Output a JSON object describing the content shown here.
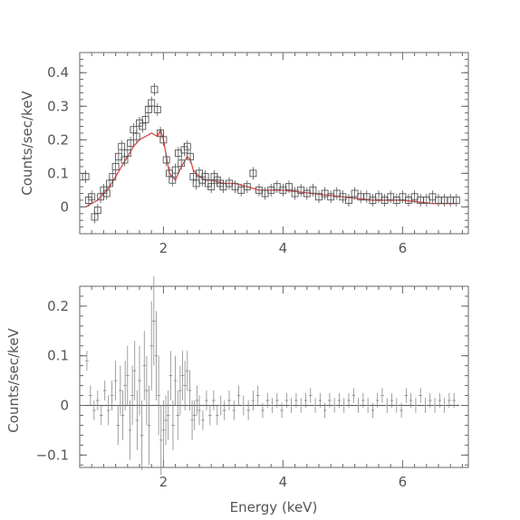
{
  "chart_data": [
    {
      "type": "scatter",
      "panel": "spectrum",
      "xlabel": "",
      "ylabel": "Counts/sec/keV",
      "xlim": [
        0.6,
        7.1
      ],
      "ylim": [
        -0.08,
        0.46
      ],
      "xticks": [
        2,
        4,
        6
      ],
      "xtick_labels": [
        "2",
        "4",
        "6"
      ],
      "yticks": [
        0,
        0.1,
        0.2,
        0.3,
        0.4
      ],
      "ytick_labels": [
        "0",
        "0.1",
        "0.2",
        "0.3",
        "0.4"
      ],
      "marker": "open-square",
      "colors": {
        "data": "#555555",
        "model": "#e05050"
      },
      "series": [
        {
          "kind": "data",
          "x": [
            0.7,
            0.75,
            0.8,
            0.85,
            0.9,
            0.95,
            1.0,
            1.05,
            1.1,
            1.15,
            1.2,
            1.25,
            1.3,
            1.35,
            1.4,
            1.45,
            1.5,
            1.55,
            1.6,
            1.65,
            1.7,
            1.75,
            1.8,
            1.85,
            1.9,
            1.95,
            2.0,
            2.05,
            2.1,
            2.15,
            2.2,
            2.25,
            2.3,
            2.35,
            2.4,
            2.45,
            2.5,
            2.55,
            2.6,
            2.65,
            2.7,
            2.75,
            2.8,
            2.85,
            2.9,
            2.95,
            3.0,
            3.1,
            3.2,
            3.3,
            3.4,
            3.5,
            3.6,
            3.7,
            3.8,
            3.9,
            4.0,
            4.1,
            4.2,
            4.3,
            4.4,
            4.5,
            4.6,
            4.7,
            4.8,
            4.9,
            5.0,
            5.1,
            5.2,
            5.3,
            5.4,
            5.5,
            5.6,
            5.7,
            5.8,
            5.9,
            6.0,
            6.1,
            6.2,
            6.3,
            6.4,
            6.5,
            6.6,
            6.7,
            6.8,
            6.9
          ],
          "y": [
            0.09,
            0.02,
            0.03,
            -0.03,
            -0.01,
            0.03,
            0.05,
            0.04,
            0.07,
            0.09,
            0.12,
            0.15,
            0.18,
            0.14,
            0.16,
            0.19,
            0.23,
            0.21,
            0.25,
            0.24,
            0.26,
            0.29,
            0.31,
            0.35,
            0.29,
            0.22,
            0.2,
            0.14,
            0.1,
            0.08,
            0.11,
            0.16,
            0.13,
            0.17,
            0.18,
            0.15,
            0.09,
            0.07,
            0.1,
            0.08,
            0.09,
            0.07,
            0.06,
            0.09,
            0.08,
            0.07,
            0.06,
            0.07,
            0.06,
            0.05,
            0.06,
            0.1,
            0.05,
            0.04,
            0.05,
            0.06,
            0.05,
            0.06,
            0.04,
            0.05,
            0.04,
            0.05,
            0.03,
            0.04,
            0.03,
            0.04,
            0.03,
            0.02,
            0.04,
            0.03,
            0.03,
            0.02,
            0.03,
            0.02,
            0.03,
            0.02,
            0.03,
            0.02,
            0.03,
            0.02,
            0.02,
            0.03,
            0.02,
            0.02,
            0.02,
            0.02
          ]
        },
        {
          "kind": "model",
          "x": [
            0.7,
            0.8,
            0.9,
            1.0,
            1.1,
            1.2,
            1.3,
            1.4,
            1.5,
            1.6,
            1.7,
            1.8,
            1.9,
            1.95,
            2.0,
            2.1,
            2.2,
            2.3,
            2.4,
            2.45,
            2.5,
            2.6,
            2.7,
            2.8,
            3.0,
            3.2,
            3.4,
            3.6,
            3.8,
            4.0,
            4.5,
            5.0,
            5.5,
            6.0,
            6.5,
            6.9
          ],
          "y": [
            0.0,
            0.01,
            0.02,
            0.04,
            0.06,
            0.09,
            0.12,
            0.15,
            0.18,
            0.2,
            0.21,
            0.22,
            0.21,
            0.23,
            0.2,
            0.1,
            0.08,
            0.12,
            0.15,
            0.14,
            0.11,
            0.09,
            0.08,
            0.08,
            0.07,
            0.07,
            0.06,
            0.05,
            0.05,
            0.05,
            0.04,
            0.03,
            0.02,
            0.02,
            0.01,
            0.01
          ]
        }
      ]
    },
    {
      "type": "scatter",
      "panel": "residuals",
      "xlabel": "Energy (keV)",
      "ylabel": "Counts/sec/keV",
      "xlim": [
        0.6,
        7.1
      ],
      "ylim": [
        -0.125,
        0.24
      ],
      "xticks": [
        2,
        4,
        6
      ],
      "xtick_labels": [
        "2",
        "4",
        "6"
      ],
      "yticks": [
        -0.1,
        0,
        0.1,
        0.2
      ],
      "ytick_labels": [
        "−0.1",
        "0",
        "0.1",
        "0.2"
      ],
      "marker": "cross-error-bar",
      "colors": {
        "data": "#888888",
        "zero_line": "#555555"
      },
      "series": [
        {
          "kind": "residuals",
          "x": [
            0.72,
            0.78,
            0.84,
            0.9,
            0.96,
            1.02,
            1.08,
            1.14,
            1.2,
            1.24,
            1.28,
            1.32,
            1.36,
            1.4,
            1.44,
            1.48,
            1.52,
            1.56,
            1.6,
            1.64,
            1.68,
            1.72,
            1.76,
            1.8,
            1.84,
            1.88,
            1.92,
            1.96,
            2.0,
            2.04,
            2.08,
            2.12,
            2.16,
            2.2,
            2.24,
            2.28,
            2.32,
            2.36,
            2.4,
            2.44,
            2.48,
            2.52,
            2.56,
            2.6,
            2.66,
            2.72,
            2.78,
            2.84,
            2.9,
            2.96,
            3.02,
            3.1,
            3.18,
            3.26,
            3.34,
            3.42,
            3.5,
            3.58,
            3.66,
            3.74,
            3.82,
            3.9,
            3.98,
            4.06,
            4.14,
            4.22,
            4.3,
            4.38,
            4.46,
            4.54,
            4.62,
            4.7,
            4.78,
            4.86,
            4.94,
            5.02,
            5.1,
            5.18,
            5.26,
            5.34,
            5.42,
            5.5,
            5.58,
            5.66,
            5.74,
            5.82,
            5.9,
            5.98,
            6.06,
            6.14,
            6.22,
            6.3,
            6.38,
            6.46,
            6.54,
            6.62,
            6.7,
            6.78,
            6.86
          ],
          "y": [
            0.09,
            0.02,
            -0.01,
            0.01,
            -0.02,
            0.03,
            -0.01,
            0.02,
            0.05,
            -0.04,
            0.03,
            -0.02,
            0.04,
            0.06,
            -0.05,
            0.02,
            0.07,
            -0.03,
            0.05,
            -0.06,
            0.08,
            0.03,
            -0.04,
            0.12,
            0.17,
            0.1,
            0.02,
            -0.07,
            -0.05,
            -0.03,
            -0.02,
            0.06,
            -0.04,
            0.05,
            -0.02,
            0.03,
            0.06,
            0.04,
            0.07,
            0.03,
            -0.03,
            -0.02,
            0.01,
            -0.01,
            -0.03,
            0.01,
            -0.02,
            0.01,
            -0.02,
            0.0,
            -0.01,
            0.01,
            -0.01,
            0.02,
            0.0,
            -0.01,
            0.01,
            0.02,
            -0.01,
            0.01,
            0.0,
            0.01,
            -0.01,
            0.01,
            0.0,
            0.01,
            0.0,
            0.01,
            0.02,
            0.0,
            0.01,
            -0.01,
            0.01,
            0.0,
            0.01,
            0.0,
            0.01,
            0.02,
            0.0,
            0.01,
            0.0,
            -0.01,
            0.01,
            0.02,
            0.0,
            0.01,
            0.0,
            -0.01,
            0.02,
            0.01,
            0.0,
            0.02,
            0.0,
            0.01,
            0.0,
            0.01,
            0.0,
            0.01,
            0.01
          ],
          "err": [
            0.02,
            0.02,
            0.02,
            0.02,
            0.02,
            0.02,
            0.03,
            0.03,
            0.04,
            0.04,
            0.05,
            0.05,
            0.05,
            0.06,
            0.06,
            0.06,
            0.06,
            0.06,
            0.07,
            0.07,
            0.07,
            0.07,
            0.08,
            0.09,
            0.09,
            0.09,
            0.08,
            0.07,
            0.06,
            0.05,
            0.05,
            0.05,
            0.05,
            0.05,
            0.05,
            0.05,
            0.05,
            0.05,
            0.04,
            0.04,
            0.04,
            0.03,
            0.03,
            0.03,
            0.02,
            0.02,
            0.02,
            0.02,
            0.02,
            0.02,
            0.02,
            0.02,
            0.02,
            0.02,
            0.02,
            0.02,
            0.02,
            0.02,
            0.015,
            0.015,
            0.015,
            0.015,
            0.015,
            0.015,
            0.015,
            0.015,
            0.015,
            0.015,
            0.015,
            0.015,
            0.015,
            0.015,
            0.015,
            0.015,
            0.015,
            0.015,
            0.015,
            0.015,
            0.015,
            0.015,
            0.015,
            0.015,
            0.015,
            0.015,
            0.015,
            0.015,
            0.015,
            0.015,
            0.015,
            0.015,
            0.015,
            0.015,
            0.015,
            0.015,
            0.015,
            0.015,
            0.015,
            0.015,
            0.015
          ]
        }
      ]
    }
  ]
}
